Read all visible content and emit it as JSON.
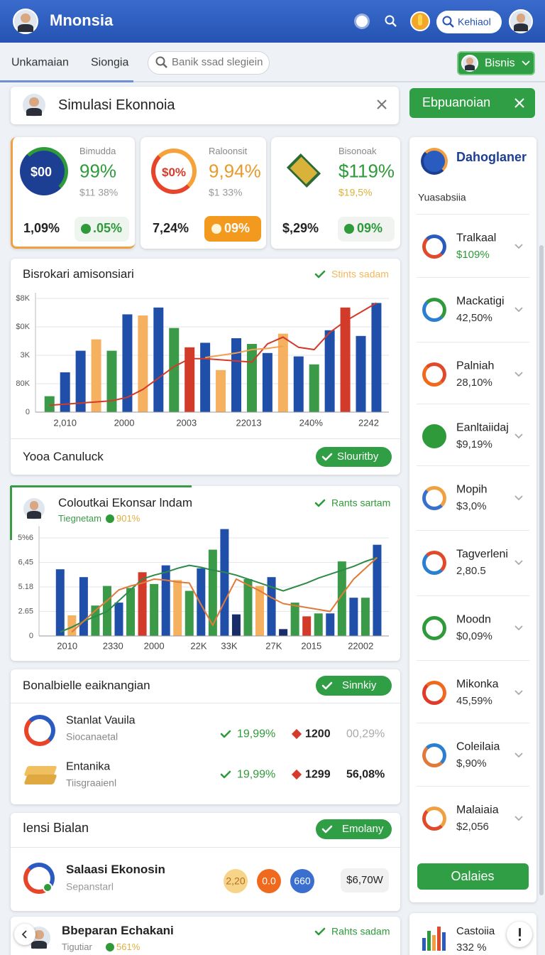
{
  "header": {
    "title": "Mnonsia",
    "search": "Kehiaol"
  },
  "toolbar": {
    "tabs": [
      "Unkamaian",
      "Siongia"
    ],
    "search_placeholder": "Banik ssad slegiein",
    "business": "Bisnis"
  },
  "simulation": {
    "title": "Simulasi Ekonnoia",
    "button": "Ebpuanoian"
  },
  "cards": [
    {
      "badge": "$00",
      "label": "Bimudda",
      "value": "99%",
      "sub": "$11 38%",
      "left": "1,09%",
      "right": ".05%"
    },
    {
      "badge": "$0%",
      "label": "Raloonsit",
      "value": "9,94%",
      "sub": "$1 33%",
      "left": "7,24%",
      "right": "09%"
    },
    {
      "label": "Bisonoak",
      "value": "$119%",
      "sub": "$19,5%",
      "left": "$,29%",
      "right": "09%"
    }
  ],
  "charts": [
    {
      "type": "bar",
      "title": "Bisrokari amisonsiari",
      "status": "Stints sadam",
      "ylim": [
        0,
        105
      ],
      "yticks": [
        0,
        {
          "value": 25,
          "label": "80K"
        },
        {
          "value": 50,
          "label": "3K"
        },
        {
          "value": 75,
          "label": "$0K"
        },
        {
          "value": 100,
          "label": "$8K"
        }
      ],
      "xlim": [
        -0.9,
        21.8
      ],
      "xticks": [
        {
          "value": 1,
          "label": "2,010"
        },
        {
          "value": 4.8,
          "label": "2000"
        },
        {
          "value": 8.8,
          "label": "2003"
        },
        {
          "value": 12.8,
          "label": "22013"
        },
        {
          "value": 16.8,
          "label": "240%"
        },
        {
          "value": 20.5,
          "label": "2242"
        }
      ],
      "bars": {
        "values": [
          14,
          35,
          54,
          64,
          54,
          86,
          85,
          92,
          74,
          57,
          61,
          37,
          65,
          60,
          52,
          69,
          49,
          42,
          72,
          92,
          67,
          96
        ],
        "colors": [
          "#3a9a48",
          "#1f4fa8",
          "#1f4fa8",
          "#f5b060",
          "#3a9a48",
          "#1f4fa8",
          "#f5b060",
          "#1f4fa8",
          "#3a9a48",
          "#d23a2a",
          "#1f4fa8",
          "#f5b060",
          "#1f4fa8",
          "#3a9a48",
          "#1f4fa8",
          "#f5b060",
          "#1f4fa8",
          "#3a9a48",
          "#1f4fa8",
          "#d23a2a",
          "#1f4fa8",
          "#1f4fa8"
        ]
      },
      "lines": [
        {
          "color": "#d23a2a",
          "values": [
            6,
            7,
            8,
            9,
            10,
            13,
            20,
            30,
            40,
            47,
            47,
            46,
            45,
            44,
            60,
            66,
            57,
            55,
            70,
            80,
            88,
            96
          ]
        },
        {
          "color": "#f0a050",
          "values": [
            null,
            null,
            null,
            null,
            null,
            null,
            null,
            null,
            null,
            null,
            48,
            50,
            52,
            55,
            56,
            58,
            null,
            null,
            null,
            null,
            null,
            null
          ]
        }
      ],
      "footer": "Yooa Canuluck",
      "button": "Slouritby"
    },
    {
      "type": "bar",
      "title": "Coloutkai Ekonsar lndam",
      "subtitle": "Tiegnetam",
      "change": "901%",
      "status": "Rants sartam",
      "ylim": [
        0,
        112
      ],
      "yticks": [
        0,
        {
          "value": 25,
          "label": "2.65"
        },
        {
          "value": 50,
          "label": "5.18"
        },
        {
          "value": 75,
          "label": "6,45"
        },
        {
          "value": 100,
          "label": "5%6"
        }
      ],
      "xlim": [
        -1.8,
        28
      ],
      "xticks": [
        {
          "value": 0.6,
          "label": "2010"
        },
        {
          "value": 4.5,
          "label": "2330"
        },
        {
          "value": 8,
          "label": "2000"
        },
        {
          "value": 11.8,
          "label": "22K"
        },
        {
          "value": 14.4,
          "label": "33K"
        },
        {
          "value": 18.2,
          "label": "27K"
        },
        {
          "value": 21.4,
          "label": "2015"
        },
        {
          "value": 25.6,
          "label": "22002"
        }
      ],
      "bars": {
        "values": [
          68,
          21,
          60,
          31,
          51,
          34,
          49,
          65,
          53,
          72,
          57,
          46,
          69,
          88,
          109,
          22,
          58,
          51,
          60,
          7,
          34,
          20,
          23,
          23,
          76,
          39,
          39,
          93
        ],
        "colors": [
          "#1f4fa8",
          "#f5b060",
          "#1f4fa8",
          "#3a9a48",
          "#3a9a48",
          "#1f4fa8",
          "#3a9a48",
          "#d23a2a",
          "#3a9a48",
          "#1f4fa8",
          "#f5b060",
          "#3a9a48",
          "#1f4fa8",
          "#3a9a48",
          "#1f4fa8",
          "#1a2d6b",
          "#3a9a48",
          "#f5b060",
          "#1f4fa8",
          "#1a2d6b",
          "#3a9a48",
          "#d23a2a",
          "#3a9a48",
          "#1f4fa8",
          "#3a9a48",
          "#1f4fa8",
          "#3a9a48",
          "#1f4fa8"
        ]
      },
      "lines": [
        {
          "color": "#2e8a48",
          "values": [
            4,
            9,
            15,
            20,
            25,
            36,
            47,
            58,
            62,
            65,
            69,
            72,
            70,
            67,
            65,
            62,
            58,
            54,
            50,
            46,
            50,
            54,
            59,
            63,
            67,
            71,
            76,
            80
          ]
        },
        {
          "color": "#e07a3a",
          "values": [
            null,
            4,
            15,
            26,
            36,
            47,
            51,
            54,
            58,
            57,
            55,
            54,
            32,
            11,
            35,
            58,
            52,
            46,
            39,
            33,
            31,
            29,
            27,
            25,
            42,
            58,
            69,
            80
          ]
        }
      ]
    }
  ],
  "breakdown": {
    "title": "Bonalbielle eaiknangian",
    "button": "Sinnkiy",
    "rows": [
      {
        "name": "Stanlat Vauila",
        "sub": "Siocanaetal",
        "change": "19,99%",
        "count": "1200",
        "share": "00,29%"
      },
      {
        "name": "Entanika",
        "sub": "Tiisgraaienl",
        "change": "19,99%",
        "count": "1299",
        "share": "56,08%"
      }
    ]
  },
  "balance": {
    "title": "Iensi Bialan",
    "button": "Emolany",
    "row": {
      "name": "Salaasi Ekonosin",
      "sub": "Sepanstarl",
      "chips": [
        "2,20",
        "0.0",
        "660"
      ],
      "value": "$6,70W"
    }
  },
  "bottom": {
    "title": "Bbeparan Echakani",
    "sub": "Tigutiar",
    "change": "561%",
    "status": "Rahts sadam"
  },
  "sidebar": {
    "title": "Dahoglaner",
    "subtitle": "Yuasabsiia",
    "items": [
      {
        "name": "Tralkaal",
        "value": "$109%"
      },
      {
        "name": "Mackatigi",
        "value": "42,50%"
      },
      {
        "name": "Palniah",
        "value": "28,10%"
      },
      {
        "name": "Eanltaiidaj",
        "value": "$9,19%"
      },
      {
        "name": "Mopih",
        "value": "$3,0%"
      },
      {
        "name": "Tagverleni",
        "value": "2,80.5"
      },
      {
        "name": "Moodn",
        "value": "$0,09%"
      },
      {
        "name": "Mikonka",
        "value": "45,59%"
      },
      {
        "name": "Coleilaia",
        "value": "$,90%"
      },
      {
        "name": "Malaiaia",
        "value": "$2,056"
      }
    ],
    "button": "Oalaies",
    "footer": {
      "name": "Castoiia",
      "value": "332 %"
    }
  }
}
